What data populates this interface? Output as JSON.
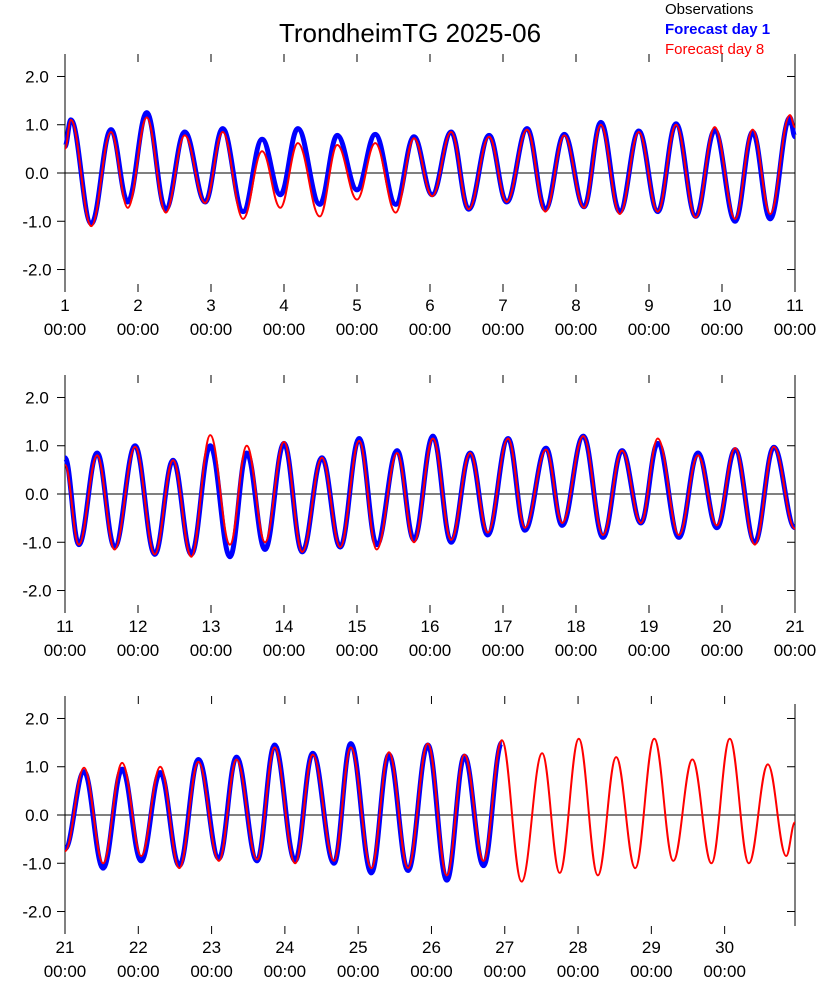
{
  "title": "TrondheimTG 2025-06",
  "legend": [
    {
      "name": "Observations",
      "color": "#000000",
      "bold": false
    },
    {
      "name": "Forecast day 1",
      "color": "#0000ff",
      "bold": true
    },
    {
      "name": "Forecast day 8",
      "color": "#ff0000",
      "bold": false
    }
  ],
  "chart_data": [
    {
      "type": "line",
      "xlim": [
        1,
        11
      ],
      "xticks": [
        {
          "value": 1,
          "label": "1 00:00"
        },
        {
          "value": 2,
          "label": "2 00:00"
        },
        {
          "value": 3,
          "label": "3 00:00"
        },
        {
          "value": 4,
          "label": "4 00:00"
        },
        {
          "value": 5,
          "label": "5 00:00"
        },
        {
          "value": 6,
          "label": "6 00:00"
        },
        {
          "value": 7,
          "label": "7 00:00"
        },
        {
          "value": 8,
          "label": "8 00:00"
        },
        {
          "value": 9,
          "label": "9 00:00"
        },
        {
          "value": 10,
          "label": "10 00:00"
        },
        {
          "value": 11,
          "label": "11 00:00"
        }
      ],
      "ylim": [
        -2.3,
        2.3
      ],
      "yticks": [
        {
          "value": -2,
          "label": "-2.0"
        },
        {
          "value": -1,
          "label": "-1.0"
        },
        {
          "value": 0,
          "label": "0.0"
        },
        {
          "value": 1,
          "label": "1.0"
        },
        {
          "value": 2,
          "label": "2.0"
        }
      ],
      "x": [
        1.0,
        1.08,
        1.36,
        1.63,
        1.86,
        2.12,
        2.38,
        2.64,
        2.92,
        3.16,
        3.44,
        3.7,
        3.95,
        4.19,
        4.49,
        4.73,
        5.0,
        5.25,
        5.53,
        5.78,
        6.03,
        6.29,
        6.53,
        6.81,
        7.05,
        7.33,
        7.58,
        7.84,
        8.11,
        8.34,
        8.6,
        8.86,
        9.12,
        9.37,
        9.64,
        9.9,
        10.18,
        10.42,
        10.66,
        10.93,
        11.0
      ],
      "series": [
        {
          "color": "#0000ff",
          "width": 5,
          "values": [
            0.55,
            1.1,
            -1.05,
            0.9,
            -0.6,
            1.25,
            -0.75,
            0.85,
            -0.6,
            0.92,
            -0.8,
            0.7,
            -0.45,
            0.92,
            -0.65,
            0.78,
            -0.35,
            0.8,
            -0.65,
            0.75,
            -0.45,
            0.85,
            -0.75,
            0.78,
            -0.6,
            0.92,
            -0.75,
            0.8,
            -0.7,
            1.05,
            -0.8,
            0.87,
            -0.8,
            1.02,
            -0.9,
            0.88,
            -1.0,
            0.85,
            -0.95,
            1.15,
            0.75
          ]
        },
        {
          "color": "#ff0000",
          "width": 2,
          "values": [
            0.5,
            1.1,
            -1.1,
            0.85,
            -0.72,
            1.15,
            -0.82,
            0.78,
            -0.62,
            0.85,
            -0.95,
            0.45,
            -0.72,
            0.62,
            -0.9,
            0.58,
            -0.55,
            0.62,
            -0.82,
            0.72,
            -0.48,
            0.85,
            -0.75,
            0.75,
            -0.6,
            0.9,
            -0.8,
            0.78,
            -0.72,
            1.0,
            -0.85,
            0.85,
            -0.8,
            1.0,
            -0.92,
            0.95,
            -0.95,
            0.9,
            -0.85,
            1.2,
            0.95
          ]
        }
      ]
    },
    {
      "type": "line",
      "xlim": [
        11,
        21
      ],
      "xticks": [
        {
          "value": 11,
          "label": "11 00:00"
        },
        {
          "value": 12,
          "label": "12 00:00"
        },
        {
          "value": 13,
          "label": "13 00:00"
        },
        {
          "value": 14,
          "label": "14 00:00"
        },
        {
          "value": 15,
          "label": "15 00:00"
        },
        {
          "value": 16,
          "label": "16 00:00"
        },
        {
          "value": 17,
          "label": "17 00:00"
        },
        {
          "value": 18,
          "label": "18 00:00"
        },
        {
          "value": 19,
          "label": "19 00:00"
        },
        {
          "value": 20,
          "label": "20 00:00"
        },
        {
          "value": 21,
          "label": "21 00:00"
        }
      ],
      "ylim": [
        -2.3,
        2.3
      ],
      "yticks": [
        {
          "value": -2,
          "label": "-2.0"
        },
        {
          "value": -1,
          "label": "-1.0"
        },
        {
          "value": 0,
          "label": "0.0"
        },
        {
          "value": 1,
          "label": "1.0"
        },
        {
          "value": 2,
          "label": "2.0"
        }
      ],
      "x": [
        11.0,
        11.19,
        11.44,
        11.68,
        11.96,
        12.23,
        12.48,
        12.73,
        12.99,
        13.26,
        13.49,
        13.74,
        14.0,
        14.25,
        14.52,
        14.77,
        15.03,
        15.27,
        15.55,
        15.78,
        16.04,
        16.29,
        16.55,
        16.79,
        17.07,
        17.3,
        17.59,
        17.81,
        18.1,
        18.37,
        18.63,
        18.89,
        19.12,
        19.41,
        19.67,
        19.93,
        20.18,
        20.45,
        20.71,
        21.0
      ],
      "series": [
        {
          "color": "#0000ff",
          "width": 5,
          "values": [
            0.75,
            -1.05,
            0.85,
            -1.1,
            1.0,
            -1.25,
            0.7,
            -1.25,
            1.0,
            -1.3,
            0.85,
            -1.15,
            1.05,
            -1.2,
            0.75,
            -1.1,
            1.15,
            -1.05,
            0.9,
            -0.95,
            1.2,
            -1.0,
            0.85,
            -0.85,
            1.15,
            -0.75,
            0.95,
            -0.65,
            1.2,
            -0.9,
            0.9,
            -0.6,
            1.05,
            -0.9,
            0.85,
            -0.7,
            0.92,
            -1.0,
            0.97,
            -0.7
          ]
        },
        {
          "color": "#ff0000",
          "width": 2,
          "values": [
            0.6,
            -1.05,
            0.8,
            -1.15,
            0.98,
            -1.25,
            0.7,
            -1.3,
            1.22,
            -1.05,
            1.0,
            -1.0,
            1.08,
            -1.2,
            0.75,
            -1.1,
            1.1,
            -1.15,
            0.85,
            -1.0,
            1.15,
            -0.95,
            0.85,
            -0.8,
            1.15,
            -0.7,
            0.92,
            -0.6,
            1.2,
            -0.85,
            0.9,
            -0.6,
            1.15,
            -0.85,
            0.8,
            -0.65,
            0.95,
            -1.05,
            0.98,
            -0.72
          ]
        }
      ]
    },
    {
      "type": "line",
      "xlim": [
        21,
        30.96
      ],
      "xticks": [
        {
          "value": 21,
          "label": "21 00:00"
        },
        {
          "value": 22,
          "label": "22 00:00"
        },
        {
          "value": 23,
          "label": "23 00:00"
        },
        {
          "value": 24,
          "label": "24 00:00"
        },
        {
          "value": 25,
          "label": "25 00:00"
        },
        {
          "value": 26,
          "label": "26 00:00"
        },
        {
          "value": 27,
          "label": "27 00:00"
        },
        {
          "value": 28,
          "label": "28 00:00"
        },
        {
          "value": 29,
          "label": "29 00:00"
        },
        {
          "value": 30,
          "label": "30 00:00"
        }
      ],
      "ylim": [
        -2.3,
        2.3
      ],
      "yticks": [
        {
          "value": -2,
          "label": "-2.0"
        },
        {
          "value": -1,
          "label": "-1.0"
        },
        {
          "value": 0,
          "label": "0.0"
        },
        {
          "value": 1,
          "label": "1.0"
        },
        {
          "value": 2,
          "label": "2.0"
        }
      ],
      "x": [
        21.0,
        21.26,
        21.52,
        21.78,
        22.04,
        22.3,
        22.56,
        22.82,
        23.1,
        23.34,
        23.62,
        23.86,
        24.14,
        24.38,
        24.67,
        24.9,
        25.18,
        25.42,
        25.68,
        25.95,
        26.21,
        26.45,
        26.71,
        26.96,
        27.23,
        27.51,
        27.75,
        28.01,
        28.27,
        28.52,
        28.78,
        29.04,
        29.3,
        29.56,
        29.82,
        30.07,
        30.33,
        30.59,
        30.84,
        30.96
      ],
      "series": [
        {
          "color": "#0000ff",
          "width": 5,
          "values": [
            -0.7,
            0.9,
            -1.1,
            0.95,
            -0.95,
            0.88,
            -1.05,
            1.15,
            -0.9,
            1.2,
            -0.95,
            1.45,
            -0.95,
            1.28,
            -1.0,
            1.48,
            -1.2,
            1.25,
            -1.15,
            1.45,
            -1.35,
            1.22,
            -1.05,
            1.5,
            null,
            null,
            null,
            null,
            null,
            null,
            null,
            null,
            null,
            null,
            null,
            null,
            null,
            null,
            null,
            null
          ]
        },
        {
          "color": "#ff0000",
          "width": 2,
          "values": [
            -0.75,
            0.98,
            -1.0,
            1.08,
            -0.85,
            1.0,
            -1.1,
            1.1,
            -0.95,
            1.15,
            -0.92,
            1.4,
            -1.0,
            1.25,
            -0.95,
            1.4,
            -1.1,
            1.3,
            -1.1,
            1.48,
            -1.25,
            1.25,
            -0.95,
            1.55,
            -1.38,
            1.28,
            -1.2,
            1.58,
            -1.25,
            1.2,
            -1.1,
            1.58,
            -0.95,
            1.15,
            -1.0,
            1.58,
            -1.0,
            1.05,
            -0.85,
            -0.15
          ]
        }
      ]
    }
  ]
}
